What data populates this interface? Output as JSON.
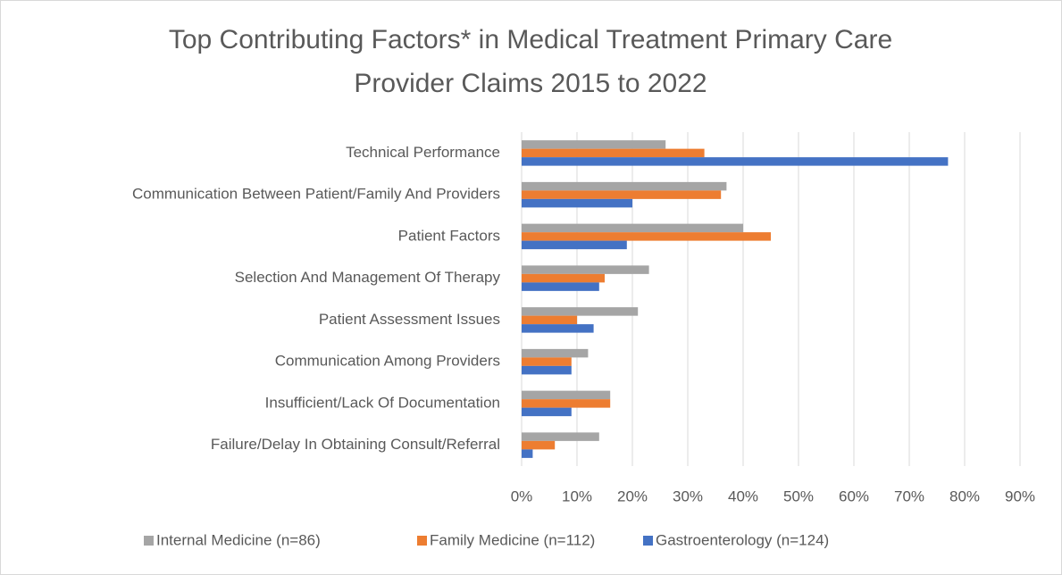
{
  "chart_data": {
    "type": "bar",
    "orientation": "horizontal",
    "title": "Top Contributing Factors* in Medical Treatment Primary Care Provider Claims 2015 to 2022",
    "categories": [
      "Technical Performance",
      "Communication Between Patient/Family And Providers",
      "Patient Factors",
      "Selection And Management Of Therapy",
      "Patient Assessment Issues",
      "Communication Among Providers",
      "Insufficient/Lack Of Documentation",
      "Failure/Delay In Obtaining Consult/Referral"
    ],
    "series": [
      {
        "name": "Internal Medicine (n=86)",
        "color": "#a5a5a5",
        "values": [
          26,
          37,
          40,
          23,
          21,
          12,
          16,
          14
        ]
      },
      {
        "name": "Family Medicine (n=112)",
        "color": "#ed7d31",
        "values": [
          33,
          36,
          45,
          15,
          10,
          9,
          16,
          6
        ]
      },
      {
        "name": "Gastroenterology (n=124)",
        "color": "#4472c4",
        "values": [
          77,
          20,
          19,
          14,
          13,
          9,
          9,
          2
        ]
      }
    ],
    "xlim": [
      0,
      90
    ],
    "xticks": [
      {
        "value": 0,
        "label": "0%"
      },
      {
        "value": 10,
        "label": "10%"
      },
      {
        "value": 20,
        "label": "20%"
      },
      {
        "value": 30,
        "label": "30%"
      },
      {
        "value": 40,
        "label": "40%"
      },
      {
        "value": 50,
        "label": "50%"
      },
      {
        "value": 60,
        "label": "60%"
      },
      {
        "value": 70,
        "label": "70%"
      },
      {
        "value": 80,
        "label": "80%"
      },
      {
        "value": 90,
        "label": "90%"
      }
    ],
    "grid": true,
    "legend": "bottom"
  }
}
